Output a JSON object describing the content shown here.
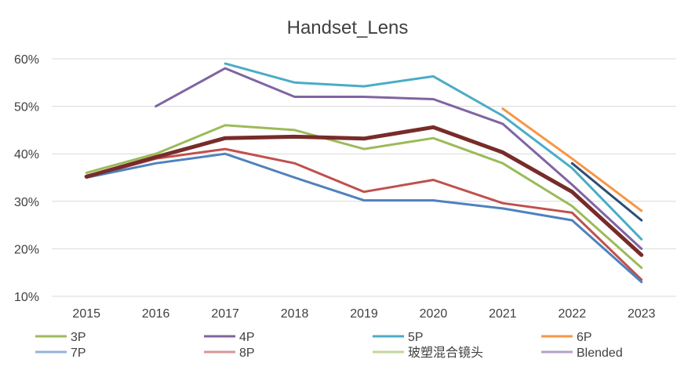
{
  "chart_data": {
    "type": "line",
    "title": "Handset_Lens",
    "xlabel": "",
    "ylabel": "",
    "x": [
      "2015",
      "2016",
      "2017",
      "2018",
      "2019",
      "2020",
      "2021",
      "2022",
      "2023"
    ],
    "y_ticks": [
      "10%",
      "20%",
      "30%",
      "40%",
      "50%",
      "60%"
    ],
    "ylim": [
      10,
      60
    ],
    "grid": true,
    "legend_position": "bottom",
    "series": [
      {
        "name": "3P",
        "color": "#9BBB59",
        "width": 3,
        "values": [
          36,
          40,
          46,
          45,
          41,
          43.3,
          38,
          29,
          16
        ]
      },
      {
        "name": "4P",
        "color": "#8064A2",
        "width": 3,
        "values": [
          null,
          50,
          58,
          52,
          52,
          51.5,
          46.3,
          33.5,
          20
        ]
      },
      {
        "name": "5P",
        "color": "#4BACC6",
        "width": 3,
        "values": [
          null,
          null,
          59,
          55,
          54.2,
          56.3,
          48,
          37,
          22
        ]
      },
      {
        "name": "6P",
        "color": "#F79646",
        "width": 3,
        "values": [
          null,
          null,
          null,
          null,
          null,
          null,
          49.5,
          39,
          28
        ]
      },
      {
        "name": "7P",
        "color": "#2C4D75",
        "width": 3,
        "values": [
          null,
          null,
          null,
          null,
          null,
          null,
          null,
          38,
          26
        ]
      },
      {
        "name": "8P",
        "color": "#C0504D",
        "width": 3,
        "values": [
          35,
          39,
          41,
          38,
          32,
          34.5,
          29.6,
          27.6,
          13.5
        ]
      },
      {
        "name": "玻塑混合镜头",
        "color": "#4F81BD",
        "width": 3,
        "values": [
          35,
          38,
          40,
          35,
          30.2,
          30.2,
          28.5,
          26,
          13
        ]
      },
      {
        "name": "Blended",
        "color": "#772C2A",
        "width": 5,
        "values": [
          35.2,
          39.3,
          43.3,
          43.6,
          43.2,
          45.6,
          40.3,
          32,
          18.7
        ]
      }
    ],
    "legend": [
      {
        "label": "3P",
        "color": "#9BBB59"
      },
      {
        "label": "4P",
        "color": "#8064A2"
      },
      {
        "label": "5P",
        "color": "#4BACC6"
      },
      {
        "label": "6P",
        "color": "#F79646"
      },
      {
        "label": "7P",
        "color": "#95B3D7"
      },
      {
        "label": "8P",
        "color": "#D99694"
      },
      {
        "label": "玻塑混合镜头",
        "color": "#C3D69B"
      },
      {
        "label": "Blended",
        "color": "#B3A2C7"
      }
    ]
  }
}
